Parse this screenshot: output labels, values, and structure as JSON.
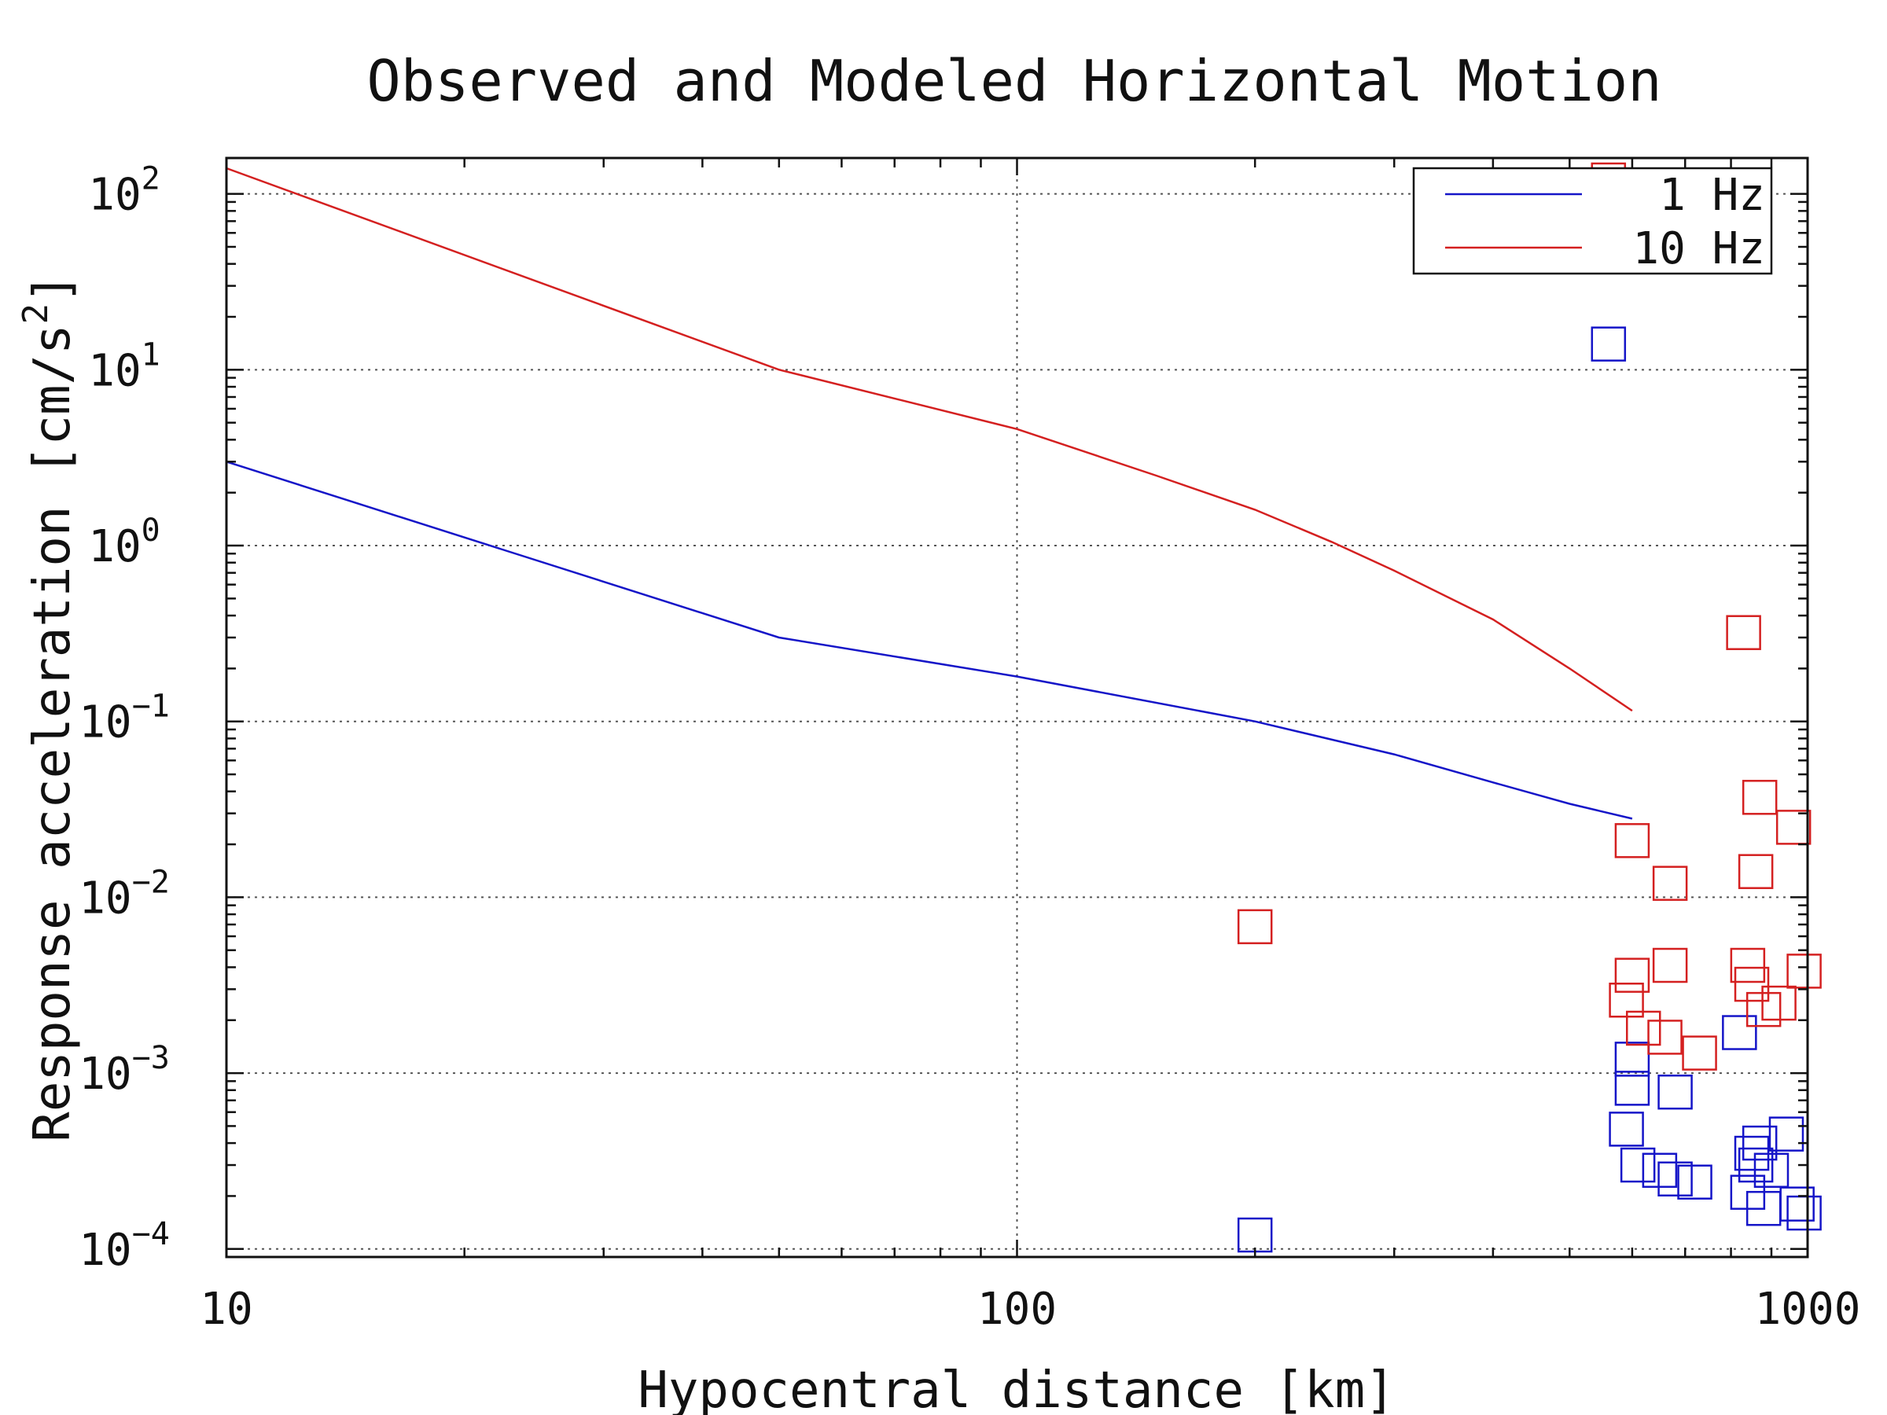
{
  "chart_data": {
    "type": "scatter",
    "title": "Observed and Modeled Horizontal Motion",
    "xlabel": "Hypocentral distance [km]",
    "ylabel": "Response acceleration [cm/s2]",
    "x_scale": "log",
    "y_scale": "log",
    "xlim": [
      10,
      1000
    ],
    "ylim": [
      9e-05,
      160
    ],
    "grid": true,
    "legend_position": "top-right",
    "x_ticks": [
      {
        "value": 10,
        "label": "10"
      },
      {
        "value": 100,
        "label": "100"
      },
      {
        "value": 1000,
        "label": "1000"
      }
    ],
    "y_ticks": [
      {
        "value": 0.0001,
        "base": "10",
        "exp": "−4"
      },
      {
        "value": 0.001,
        "base": "10",
        "exp": "−3"
      },
      {
        "value": 0.01,
        "base": "10",
        "exp": "−2"
      },
      {
        "value": 0.1,
        "base": "10",
        "exp": "−1"
      },
      {
        "value": 1,
        "base": "10",
        "exp": "0"
      },
      {
        "value": 10,
        "base": "10",
        "exp": "1"
      },
      {
        "value": 100,
        "base": "10",
        "exp": "2"
      }
    ],
    "series": [
      {
        "name": "1 Hz",
        "color": "#1515c8",
        "line": [
          [
            10,
            3.0
          ],
          [
            50,
            0.3
          ],
          [
            100,
            0.18
          ],
          [
            200,
            0.1
          ],
          [
            300,
            0.065
          ],
          [
            400,
            0.045
          ],
          [
            500,
            0.034
          ],
          [
            600,
            0.028
          ]
        ],
        "points": [
          [
            200,
            0.00012
          ],
          [
            560,
            14
          ],
          [
            600,
            0.0012
          ],
          [
            600,
            0.00082
          ],
          [
            590,
            0.00048
          ],
          [
            610,
            0.0003
          ],
          [
            680,
            0.00078
          ],
          [
            650,
            0.00028
          ],
          [
            680,
            0.00025
          ],
          [
            720,
            0.00024
          ],
          [
            820,
            0.0017
          ],
          [
            850,
            0.00035
          ],
          [
            870,
            0.0004
          ],
          [
            860,
            0.0003
          ],
          [
            900,
            0.00028
          ],
          [
            840,
            0.00021
          ],
          [
            880,
            0.00017
          ],
          [
            940,
            0.00045
          ],
          [
            970,
            0.00018
          ],
          [
            990,
            0.00016
          ]
        ]
      },
      {
        "name": "10 Hz",
        "color": "#d42020",
        "line": [
          [
            10,
            140
          ],
          [
            50,
            10
          ],
          [
            100,
            4.6
          ],
          [
            150,
            2.5
          ],
          [
            200,
            1.6
          ],
          [
            250,
            1.05
          ],
          [
            300,
            0.72
          ],
          [
            400,
            0.38
          ],
          [
            500,
            0.2
          ],
          [
            600,
            0.115
          ]
        ],
        "points": [
          [
            200,
            0.0068
          ],
          [
            560,
            120
          ],
          [
            830,
            0.32
          ],
          [
            600,
            0.021
          ],
          [
            670,
            0.012
          ],
          [
            870,
            0.037
          ],
          [
            960,
            0.025
          ],
          [
            860,
            0.014
          ],
          [
            600,
            0.0036
          ],
          [
            670,
            0.0041
          ],
          [
            590,
            0.0026
          ],
          [
            620,
            0.0018
          ],
          [
            660,
            0.0016
          ],
          [
            730,
            0.0013
          ],
          [
            840,
            0.0041
          ],
          [
            850,
            0.0032
          ],
          [
            880,
            0.0023
          ],
          [
            920,
            0.0025
          ],
          [
            990,
            0.0038
          ]
        ]
      }
    ]
  }
}
